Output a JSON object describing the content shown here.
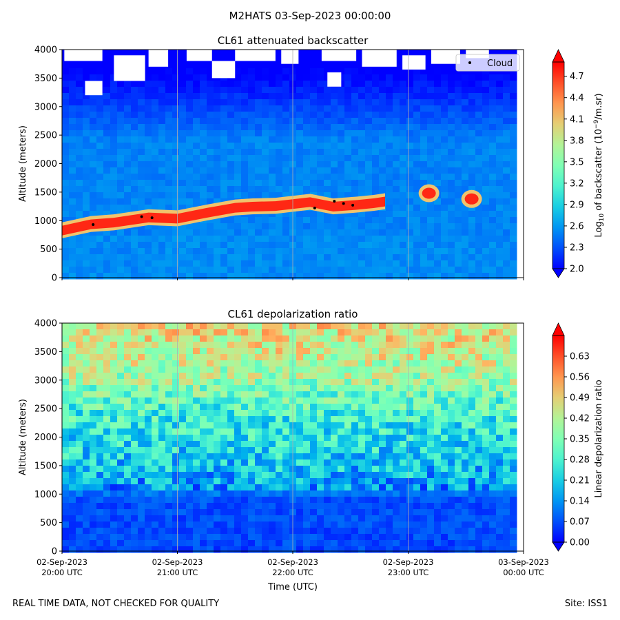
{
  "figure": {
    "suptitle": "M2HATS 03-Sep-2023 00:00:00",
    "footer_left": "REAL TIME DATA, NOT CHECKED FOR QUALITY",
    "footer_right": "Site: ISS1"
  },
  "chart_data": [
    {
      "type": "heatmap",
      "title": "CL61 attenuated backscatter",
      "ylabel": "Altitude (meters)",
      "xlabel": "",
      "ylim": [
        0,
        4000
      ],
      "yticks": [
        0,
        500,
        1000,
        1500,
        2000,
        2500,
        3000,
        3500,
        4000
      ],
      "x_range_hours": [
        20,
        24
      ],
      "xticks_hours": [
        20,
        21,
        22,
        23,
        24
      ],
      "vertical_grid": true,
      "colorbar": {
        "label_prefix": "Log",
        "label_sub": "10",
        "label_mid": " of backscatter (10",
        "label_sup": "−9",
        "label_suffix": "/m.sr)",
        "range": [
          2.0,
          4.9
        ],
        "ticks": [
          "2.0",
          "2.3",
          "2.6",
          "2.9",
          "3.2",
          "3.5",
          "3.8",
          "4.1",
          "4.4",
          "4.7"
        ]
      },
      "legend": {
        "label": "Cloud",
        "location": "top-right"
      },
      "cloud_layer_path": [
        {
          "t": 20.0,
          "alt": 820
        },
        {
          "t": 20.25,
          "alt": 930
        },
        {
          "t": 20.45,
          "alt": 960
        },
        {
          "t": 20.75,
          "alt": 1050
        },
        {
          "t": 21.0,
          "alt": 1030
        },
        {
          "t": 21.25,
          "alt": 1130
        },
        {
          "t": 21.5,
          "alt": 1220
        },
        {
          "t": 21.65,
          "alt": 1240
        },
        {
          "t": 21.85,
          "alt": 1250
        },
        {
          "t": 22.15,
          "alt": 1320
        },
        {
          "t": 22.35,
          "alt": 1240
        },
        {
          "t": 22.55,
          "alt": 1270
        },
        {
          "t": 22.7,
          "alt": 1300
        },
        {
          "t": 22.8,
          "alt": 1330
        }
      ],
      "isolated_clouds": [
        {
          "t": 23.18,
          "alt": 1480
        },
        {
          "t": 23.55,
          "alt": 1380
        }
      ],
      "cloud_points": [
        {
          "t": 20.27,
          "alt": 930
        },
        {
          "t": 20.69,
          "alt": 1070
        },
        {
          "t": 20.78,
          "alt": 1050
        },
        {
          "t": 22.19,
          "alt": 1220
        },
        {
          "t": 22.36,
          "alt": 1340
        },
        {
          "t": 22.44,
          "alt": 1300
        },
        {
          "t": 22.52,
          "alt": 1270
        }
      ],
      "data_gaps_upper": [
        {
          "t0": 20.02,
          "t1": 20.35,
          "a0": 3800,
          "a1": 4000
        },
        {
          "t0": 20.2,
          "t1": 20.35,
          "a0": 3200,
          "a1": 3450
        },
        {
          "t0": 20.45,
          "t1": 20.72,
          "a0": 3450,
          "a1": 3900
        },
        {
          "t0": 20.75,
          "t1": 20.92,
          "a0": 3700,
          "a1": 4000
        },
        {
          "t0": 21.08,
          "t1": 21.3,
          "a0": 3800,
          "a1": 4000
        },
        {
          "t0": 21.3,
          "t1": 21.5,
          "a0": 3500,
          "a1": 3800
        },
        {
          "t0": 21.5,
          "t1": 21.85,
          "a0": 3800,
          "a1": 4000
        },
        {
          "t0": 21.9,
          "t1": 22.05,
          "a0": 3750,
          "a1": 4000
        },
        {
          "t0": 22.25,
          "t1": 22.55,
          "a0": 3800,
          "a1": 4000
        },
        {
          "t0": 22.3,
          "t1": 22.42,
          "a0": 3350,
          "a1": 3600
        },
        {
          "t0": 22.6,
          "t1": 22.9,
          "a0": 3700,
          "a1": 4000
        },
        {
          "t0": 22.95,
          "t1": 23.15,
          "a0": 3650,
          "a1": 3900
        },
        {
          "t0": 23.2,
          "t1": 23.45,
          "a0": 3750,
          "a1": 4000
        },
        {
          "t0": 23.5,
          "t1": 23.7,
          "a0": 3850,
          "a1": 4000
        }
      ]
    },
    {
      "type": "heatmap",
      "title": "CL61 depolarization ratio",
      "ylabel": "Altitude (meters)",
      "xlabel": "Time (UTC)",
      "ylim": [
        0,
        4000
      ],
      "yticks": [
        0,
        500,
        1000,
        1500,
        2000,
        2500,
        3000,
        3500,
        4000
      ],
      "x_range_hours": [
        20,
        24
      ],
      "xticks_hours": [
        20,
        21,
        22,
        23,
        24
      ],
      "xtick_labels": [
        [
          "02-Sep-2023",
          "20:00 UTC"
        ],
        [
          "02-Sep-2023",
          "21:00 UTC"
        ],
        [
          "02-Sep-2023",
          "22:00 UTC"
        ],
        [
          "02-Sep-2023",
          "23:00 UTC"
        ],
        [
          "03-Sep-2023",
          "00:00 UTC"
        ]
      ],
      "vertical_grid": true,
      "colorbar": {
        "label": "Linear depolarization ratio",
        "range": [
          0.0,
          0.7
        ],
        "ticks": [
          "0.00",
          "0.07",
          "0.14",
          "0.21",
          "0.28",
          "0.35",
          "0.42",
          "0.49",
          "0.56",
          "0.63"
        ]
      },
      "profile_by_altitude": [
        {
          "alt": 0,
          "value": 0.06
        },
        {
          "alt": 900,
          "value": 0.07
        },
        {
          "alt": 1200,
          "value": 0.16
        },
        {
          "alt": 1700,
          "value": 0.22
        },
        {
          "alt": 2400,
          "value": 0.27
        },
        {
          "alt": 3000,
          "value": 0.38
        },
        {
          "alt": 3500,
          "value": 0.44
        },
        {
          "alt": 4000,
          "value": 0.47
        }
      ]
    }
  ]
}
